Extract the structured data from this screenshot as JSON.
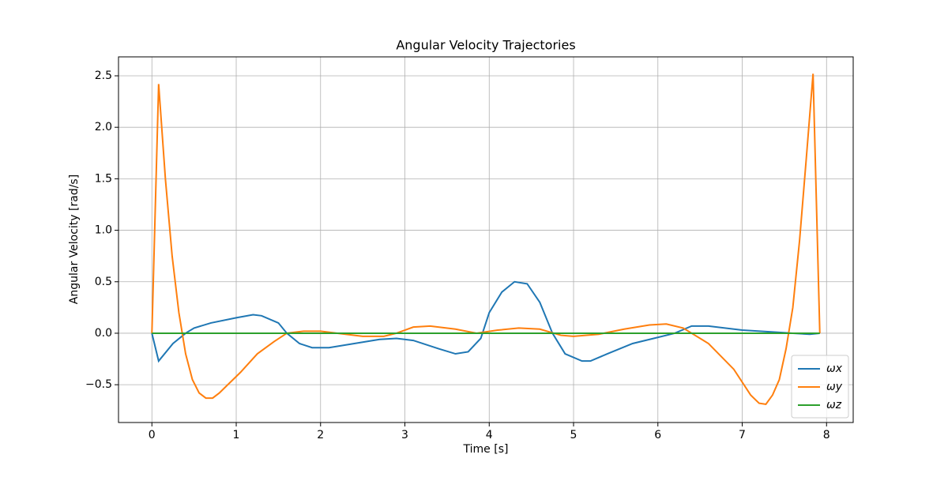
{
  "chart_data": {
    "type": "line",
    "title": "Angular Velocity Trajectories",
    "xlabel": "Time [s]",
    "ylabel": "Angular Velocity [rad/s]",
    "xlim": [
      -0.396,
      8.316
    ],
    "ylim": [
      -0.867,
      2.684
    ],
    "xticks": [
      0,
      1,
      2,
      3,
      4,
      5,
      6,
      7,
      8
    ],
    "yticks": [
      {
        "value": -0.5,
        "label": "−0.5"
      },
      {
        "value": 0,
        "label": "0.0"
      },
      {
        "value": 0.5,
        "label": "0.5"
      },
      {
        "value": 1,
        "label": "1.0"
      },
      {
        "value": 1.5,
        "label": "1.5"
      },
      {
        "value": 2,
        "label": "2.0"
      },
      {
        "value": 2.5,
        "label": "2.5"
      }
    ],
    "grid": true,
    "legend": "lower right",
    "series": [
      {
        "name": "ωx",
        "color": "#1f77b4",
        "x": [
          0,
          0.08,
          0.25,
          0.4,
          0.5,
          0.7,
          1.0,
          1.2,
          1.3,
          1.5,
          1.6,
          1.75,
          1.9,
          2.1,
          2.4,
          2.7,
          2.9,
          3.1,
          3.4,
          3.6,
          3.75,
          3.9,
          4.0,
          4.15,
          4.3,
          4.45,
          4.6,
          4.75,
          4.9,
          5.1,
          5.2,
          5.4,
          5.7,
          5.95,
          6.2,
          6.4,
          6.6,
          7.0,
          7.4,
          7.6,
          7.8,
          7.92
        ],
        "values": [
          0,
          -0.27,
          -0.1,
          0,
          0.05,
          0.1,
          0.15,
          0.18,
          0.17,
          0.1,
          0,
          -0.1,
          -0.14,
          -0.14,
          -0.1,
          -0.06,
          -0.05,
          -0.07,
          -0.15,
          -0.2,
          -0.18,
          -0.05,
          0.2,
          0.4,
          0.5,
          0.48,
          0.3,
          0,
          -0.2,
          -0.27,
          -0.27,
          -0.2,
          -0.1,
          -0.05,
          0,
          0.07,
          0.07,
          0.03,
          0.01,
          0,
          -0.01,
          0
        ]
      },
      {
        "name": "ωy",
        "color": "#ff7f0e",
        "x": [
          0,
          0.08,
          0.16,
          0.24,
          0.32,
          0.4,
          0.48,
          0.56,
          0.64,
          0.72,
          0.8,
          0.9,
          1.05,
          1.25,
          1.45,
          1.6,
          1.8,
          2.0,
          2.2,
          2.5,
          2.75,
          2.9,
          3.1,
          3.3,
          3.6,
          3.85,
          4.1,
          4.35,
          4.6,
          4.85,
          5.0,
          5.3,
          5.6,
          5.9,
          6.1,
          6.3,
          6.6,
          6.9,
          7.1,
          7.2,
          7.28,
          7.36,
          7.44,
          7.52,
          7.6,
          7.68,
          7.76,
          7.84,
          7.92
        ],
        "values": [
          0,
          2.42,
          1.5,
          0.75,
          0.2,
          -0.2,
          -0.45,
          -0.58,
          -0.63,
          -0.63,
          -0.58,
          -0.5,
          -0.38,
          -0.2,
          -0.08,
          0,
          0.02,
          0.02,
          0,
          -0.03,
          -0.03,
          0,
          0.06,
          0.07,
          0.04,
          0,
          0.03,
          0.05,
          0.04,
          -0.02,
          -0.03,
          -0.01,
          0.04,
          0.08,
          0.09,
          0.05,
          -0.1,
          -0.35,
          -0.6,
          -0.68,
          -0.69,
          -0.6,
          -0.45,
          -0.15,
          0.25,
          0.9,
          1.7,
          2.52,
          0
        ]
      },
      {
        "name": "ωz",
        "color": "#2ca02c",
        "x": [
          0,
          7.92
        ],
        "values": [
          0,
          0
        ]
      }
    ]
  }
}
